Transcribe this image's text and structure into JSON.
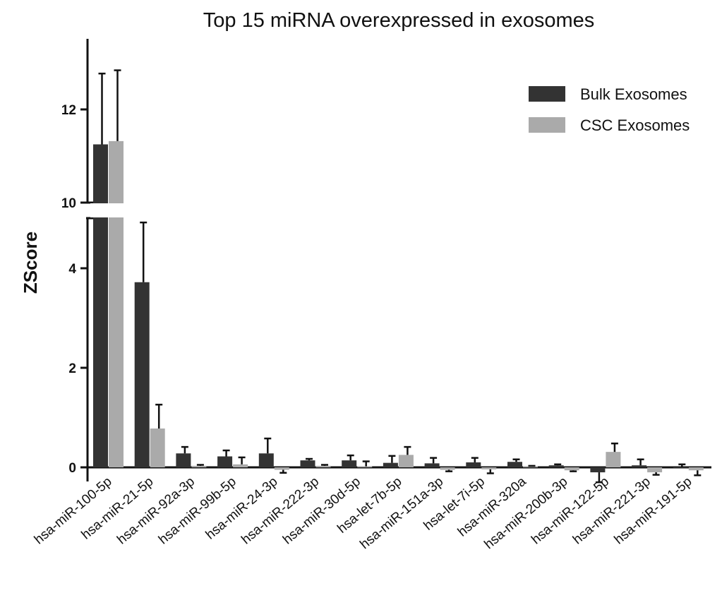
{
  "chart_data": {
    "type": "bar",
    "title": "Top 15 miRNA overexpressed in exosomes",
    "xlabel": "",
    "ylabel": "ZScore",
    "y_axis_break": [
      5,
      10
    ],
    "ylim": [
      -0.3,
      13.5
    ],
    "yticks": [
      "0",
      "2",
      "4",
      "10",
      "12"
    ],
    "categories": [
      "hsa-miR-100-5p",
      "hsa-miR-21-5p",
      "hsa-miR-92a-3p",
      "hsa-miR-99b-5p",
      "hsa-miR-24-3p",
      "hsa-miR-222-3p",
      "hsa-miR-30d-5p",
      "hsa-let-7b-5p",
      "hsa-miR-151a-3p",
      "hsa-let-7i-5p",
      "hsa-miR-320a",
      "hsa-miR-200b-3p",
      "hsa-miR-122-5p",
      "hsa-miR-221-3p",
      "hsa-miR-191-5p"
    ],
    "series": [
      {
        "name": "Bulk Exosomes",
        "color": "#333333",
        "values": [
          11.25,
          3.72,
          0.28,
          0.22,
          0.28,
          0.14,
          0.14,
          0.09,
          0.08,
          0.1,
          0.11,
          0.04,
          -0.1,
          0.04,
          0.0
        ],
        "error": [
          1.52,
          1.2,
          0.13,
          0.12,
          0.3,
          0.03,
          0.1,
          0.14,
          0.11,
          0.09,
          0.05,
          0.02,
          0.2,
          0.12,
          0.06
        ]
      },
      {
        "name": "CSC Exosomes",
        "color": "#aaaaaa",
        "values": [
          11.32,
          0.78,
          0.03,
          0.06,
          -0.05,
          0.03,
          0.02,
          0.25,
          -0.05,
          -0.04,
          0.02,
          -0.06,
          0.31,
          -0.1,
          -0.06
        ],
        "error": [
          1.52,
          0.48,
          0.02,
          0.14,
          0.06,
          0.02,
          0.1,
          0.16,
          0.03,
          0.08,
          0.01,
          0.02,
          0.17,
          0.05,
          0.1
        ]
      }
    ],
    "legend": {
      "position": "top-right"
    },
    "grid": false
  }
}
